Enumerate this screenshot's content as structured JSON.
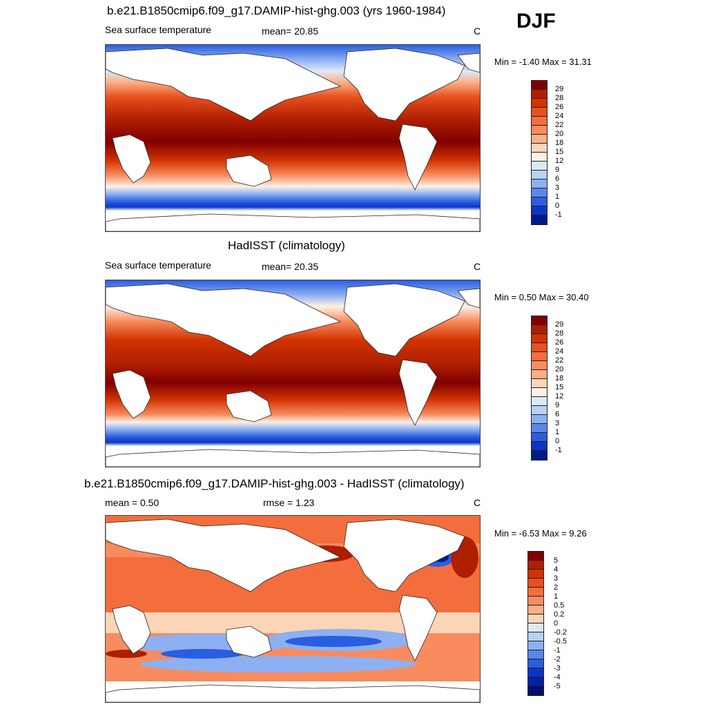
{
  "season": "DJF",
  "panels": [
    {
      "title": "b.e21.B1850cmip6.f09_g17.DAMIP-hist-ghg.003 (yrs 1960-1984)",
      "left_label": "Sea surface temperature",
      "center_label": "mean=  20.85",
      "right_label": "C",
      "minmax": "Min =  -1.40 Max =  31.31",
      "colorbar": {
        "labels": [
          "29",
          "28",
          "26",
          "24",
          "22",
          "20",
          "18",
          "15",
          "12",
          "9",
          "6",
          "3",
          "1",
          "0",
          "-1"
        ],
        "colors": [
          "#800000",
          "#b01e00",
          "#d23300",
          "#e8501e",
          "#f46d3c",
          "#f88c5f",
          "#fab087",
          "#fcd5b8",
          "#fdf1e4",
          "#dde9fa",
          "#b7d1f7",
          "#8cb0f2",
          "#5a88ea",
          "#2a5ee0",
          "#0c35c6",
          "#001a8c"
        ]
      }
    },
    {
      "title": "HadISST (climatology)",
      "left_label": "Sea surface temperature",
      "center_label": "mean=  20.35",
      "right_label": "C",
      "minmax": "Min =   0.50 Max =  30.40",
      "colorbar": {
        "labels": [
          "29",
          "28",
          "26",
          "24",
          "22",
          "20",
          "18",
          "15",
          "12",
          "9",
          "6",
          "3",
          "1",
          "0",
          "-1"
        ],
        "colors": [
          "#800000",
          "#b01e00",
          "#d23300",
          "#e8501e",
          "#f46d3c",
          "#f88c5f",
          "#fab087",
          "#fcd5b8",
          "#fdf1e4",
          "#dde9fa",
          "#b7d1f7",
          "#8cb0f2",
          "#5a88ea",
          "#2a5ee0",
          "#0c35c6",
          "#001a8c"
        ]
      }
    },
    {
      "title": "b.e21.B1850cmip6.f09_g17.DAMIP-hist-ghg.003 - HadISST (climatology)",
      "left_label": "mean =   0.50",
      "center_label": "rmse =   1.23",
      "right_label": "C",
      "minmax": "Min =  -6.53 Max =   9.26",
      "colorbar": {
        "labels": [
          "5",
          "4",
          "3",
          "2",
          "1",
          "0.5",
          "0.2",
          "0",
          "-0.2",
          "-0.5",
          "-1",
          "-2",
          "-3",
          "-4",
          "-5"
        ],
        "colors": [
          "#800000",
          "#b01e00",
          "#d23300",
          "#e8501e",
          "#f46d3c",
          "#f88c5f",
          "#fab087",
          "#fcd5b8",
          "#dde9fa",
          "#b7d1f7",
          "#8cb0f2",
          "#5a88ea",
          "#2a5ee0",
          "#0c35c6",
          "#0022a8",
          "#001070"
        ]
      }
    }
  ]
}
